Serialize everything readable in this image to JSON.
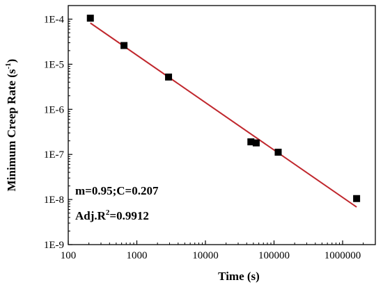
{
  "chart_data": {
    "type": "scatter",
    "xscale": "log",
    "yscale": "log",
    "xlabel": "Time (s)",
    "ylabel_main": "Minimum Creep Rate (s",
    "ylabel_sup": "-1",
    "ylabel_close": ")",
    "xlim": [
      100,
      3000000
    ],
    "ylim": [
      1e-09,
      0.0002
    ],
    "x_ticks": [
      {
        "value": 100,
        "label": "100"
      },
      {
        "value": 1000,
        "label": "1000"
      },
      {
        "value": 10000,
        "label": "10000"
      },
      {
        "value": 100000,
        "label": "100000"
      },
      {
        "value": 1000000,
        "label": "1000000"
      }
    ],
    "y_ticks": [
      {
        "value": 0.0001,
        "label": "1E-4"
      },
      {
        "value": 1e-05,
        "label": "1E-5"
      },
      {
        "value": 1e-06,
        "label": "1E-6"
      },
      {
        "value": 1e-07,
        "label": "1E-7"
      },
      {
        "value": 1e-08,
        "label": "1E-8"
      },
      {
        "value": 1e-09,
        "label": "1E-9"
      }
    ],
    "points": [
      {
        "x": 210,
        "y": 0.000105
      },
      {
        "x": 650,
        "y": 2.6e-05
      },
      {
        "x": 2900,
        "y": 5.2e-06
      },
      {
        "x": 46000,
        "y": 1.9e-07
      },
      {
        "x": 55000,
        "y": 1.8e-07
      },
      {
        "x": 115000,
        "y": 1.12e-07
      },
      {
        "x": 1600000,
        "y": 1.05e-08
      }
    ],
    "fit_line": {
      "color": "#c0272d",
      "x": [
        210,
        1600000
      ],
      "y": [
        8.2e-05,
        6.8e-09
      ]
    },
    "marker_color": "#000000",
    "grid": false,
    "annotations": {
      "line1": "m=0.95;C=0.207",
      "line2_prefix": "Adj.R",
      "line2_sup": "2",
      "line2_suffix": "=0.9912"
    }
  }
}
